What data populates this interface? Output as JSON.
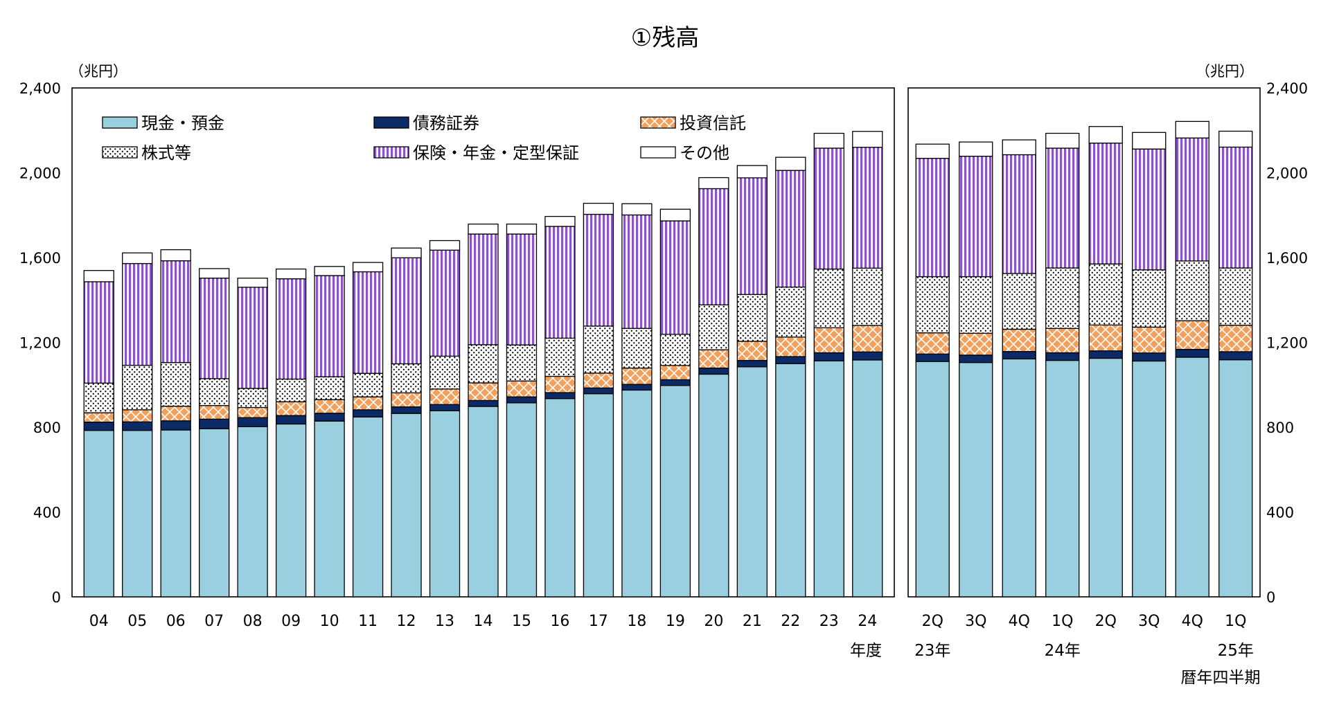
{
  "chart_data": {
    "type": "bar",
    "stacked": true,
    "title": "①残高",
    "unit_left": "（兆円）",
    "unit_right": "（兆円）",
    "ylim": [
      0,
      2400
    ],
    "yticks": [
      "0",
      "400",
      "800",
      "1,200",
      "1,600",
      "2,000",
      "2,400"
    ],
    "ytick_values": [
      0,
      400,
      800,
      1200,
      1600,
      2000,
      2400
    ],
    "legend_position": "top-left",
    "grid": false,
    "colors": {
      "cash": "#99cfdf",
      "debt": "#0b2a66",
      "trust": "#f2a05c",
      "equity": "#ffffff",
      "insurance": "#8a55c8",
      "other": "#ffffff"
    },
    "series": [
      {
        "key": "cash",
        "name": "現金・預金"
      },
      {
        "key": "debt",
        "name": "債務証券"
      },
      {
        "key": "trust",
        "name": "投資信託"
      },
      {
        "key": "equity",
        "name": "株式等"
      },
      {
        "key": "insurance",
        "name": "保険・年金・定型保証"
      },
      {
        "key": "other",
        "name": "その他"
      }
    ],
    "annual": {
      "axis_note": "年度",
      "categories": [
        "04",
        "05",
        "06",
        "07",
        "08",
        "09",
        "10",
        "11",
        "12",
        "13",
        "14",
        "15",
        "16",
        "17",
        "18",
        "19",
        "20",
        "21",
        "22",
        "23",
        "24"
      ],
      "values": {
        "cash": [
          785,
          785,
          787,
          793,
          803,
          815,
          829,
          848,
          865,
          878,
          898,
          915,
          935,
          958,
          975,
          997,
          1050,
          1085,
          1100,
          1113,
          1117
        ],
        "debt": [
          39,
          40,
          43,
          45,
          42,
          40,
          37,
          34,
          31,
          29,
          28,
          28,
          28,
          27,
          27,
          27,
          29,
          30,
          33,
          38,
          38
        ],
        "trust": [
          44,
          57,
          69,
          64,
          48,
          65,
          64,
          61,
          66,
          73,
          83,
          75,
          77,
          70,
          77,
          67,
          86,
          90,
          92,
          118,
          125
        ],
        "equity": [
          140,
          210,
          206,
          127,
          90,
          107,
          108,
          111,
          137,
          155,
          180,
          170,
          180,
          222,
          187,
          147,
          212,
          221,
          236,
          277,
          270
        ],
        "insurance": [
          478,
          480,
          480,
          474,
          477,
          473,
          477,
          479,
          500,
          500,
          522,
          523,
          527,
          527,
          535,
          535,
          548,
          550,
          550,
          570,
          570
        ],
        "other": [
          53,
          50,
          52,
          45,
          43,
          46,
          43,
          44,
          46,
          45,
          47,
          47,
          47,
          52,
          53,
          55,
          52,
          58,
          62,
          70,
          75
        ]
      }
    },
    "quarterly": {
      "axis_note": "暦年四半期",
      "categories": [
        "2Q",
        "3Q",
        "4Q",
        "1Q",
        "2Q",
        "3Q",
        "4Q",
        "1Q"
      ],
      "year_labels": [
        "23年",
        "",
        "",
        "24年",
        "",
        "",
        "",
        "25年"
      ],
      "values": {
        "cash": [
          1110,
          1105,
          1122,
          1115,
          1125,
          1112,
          1130,
          1118
        ],
        "debt": [
          35,
          35,
          35,
          36,
          35,
          38,
          37,
          38
        ],
        "trust": [
          100,
          103,
          105,
          115,
          122,
          122,
          135,
          125
        ],
        "equity": [
          265,
          267,
          263,
          285,
          288,
          270,
          282,
          270
        ],
        "insurance": [
          558,
          568,
          560,
          565,
          570,
          570,
          580,
          570
        ],
        "other": [
          67,
          67,
          70,
          70,
          78,
          78,
          78,
          75
        ]
      }
    }
  }
}
